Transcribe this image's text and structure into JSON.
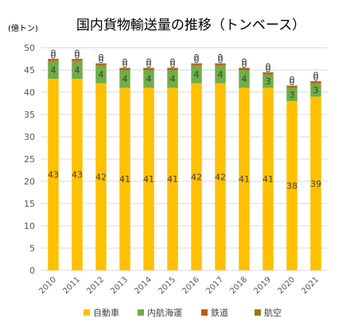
{
  "chart_data": {
    "type": "bar",
    "stacked": true,
    "title": "国内貨物輸送量の推移（トンベース）",
    "unit_label": "(億トン)",
    "categories": [
      "2010",
      "2011",
      "2012",
      "2013",
      "2014",
      "2015",
      "2016",
      "2017",
      "2018",
      "2019",
      "2020",
      "2021"
    ],
    "ylim": [
      0,
      50
    ],
    "yticks": [
      0,
      5,
      10,
      15,
      20,
      25,
      30,
      35,
      40,
      45,
      50
    ],
    "grid": true,
    "legend_position": "bottom",
    "series": [
      {
        "name": "自動車",
        "color": "#FFC000",
        "values": [
          43,
          43,
          42,
          41,
          41,
          41,
          42,
          42,
          41,
          41,
          38,
          39
        ]
      },
      {
        "name": "内航海運",
        "color": "#70AD47",
        "values": [
          4,
          4,
          4,
          4,
          4,
          4,
          4,
          4,
          4,
          3,
          3,
          3
        ]
      },
      {
        "name": "鉄道",
        "color": "#C55A11",
        "values": [
          0.4,
          0.4,
          0.4,
          0.4,
          0.4,
          0.4,
          0.4,
          0.4,
          0.4,
          0.4,
          0.4,
          0.4
        ]
      },
      {
        "name": "航空",
        "color": "#9C7A00",
        "values": [
          0.01,
          0.01,
          0.01,
          0.01,
          0.01,
          0.01,
          0.01,
          0.01,
          0.01,
          0.01,
          0.01,
          0.01
        ]
      }
    ],
    "data_labels": [
      [
        "43",
        "43",
        "42",
        "41",
        "41",
        "41",
        "42",
        "42",
        "41",
        "41",
        "38",
        "39"
      ],
      [
        "4",
        "4",
        "4",
        "4",
        "4",
        "4",
        "4",
        "4",
        "4",
        "3",
        "3",
        "3"
      ],
      [
        "0",
        "0",
        "0",
        "0",
        "0",
        "0",
        "0",
        "0",
        "0",
        "0",
        "0",
        "0"
      ],
      [
        "0",
        "0",
        "0",
        "0",
        "0",
        "0",
        "0",
        "0",
        "0",
        "0",
        "0",
        "0"
      ]
    ]
  }
}
